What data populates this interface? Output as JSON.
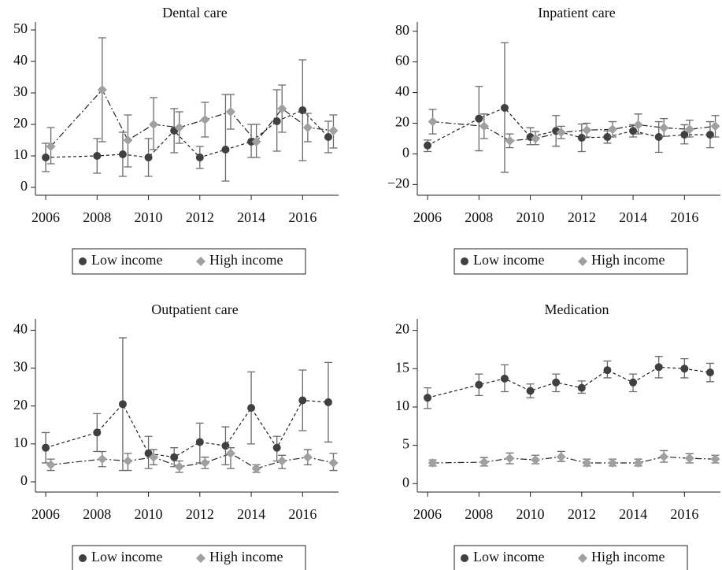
{
  "chart_data": [
    {
      "type": "line",
      "title": "Dental care",
      "xlim": [
        2005.6,
        2017.4
      ],
      "xticks": [
        2006,
        2008,
        2010,
        2012,
        2014,
        2016
      ],
      "ylim": [
        -2.5,
        52.5
      ],
      "yticks": [
        0,
        10,
        20,
        30,
        40,
        50
      ],
      "legend": "bottom",
      "series": [
        {
          "name": "Low income",
          "color": "#404040",
          "marker": "circle",
          "linestyle": "dashed",
          "x": [
            2006,
            2008,
            2009,
            2010,
            2011,
            2012,
            2013,
            2014,
            2015,
            2016,
            2017
          ],
          "values": [
            9.5,
            10,
            10.5,
            9.5,
            18,
            9.5,
            12,
            14.5,
            21,
            24.5,
            16
          ],
          "lower": [
            5,
            4.5,
            3.5,
            3.5,
            11,
            6,
            2,
            9.5,
            11.5,
            8.5,
            11
          ],
          "upper": [
            14,
            15.5,
            17.5,
            15.5,
            25,
            13,
            29.5,
            20,
            31,
            40.5,
            21
          ]
        },
        {
          "name": "High income",
          "color": "#a0a0a0",
          "marker": "diamond",
          "linestyle": "dashdot",
          "x": [
            2006.2,
            2008.2,
            2009.2,
            2010.2,
            2011.2,
            2012.2,
            2013.2,
            2014.2,
            2015.2,
            2016.2,
            2017.2
          ],
          "values": [
            13,
            31,
            15,
            20,
            19,
            21.5,
            24,
            14.5,
            25,
            19,
            18
          ],
          "lower": [
            7.5,
            14.5,
            6.5,
            12,
            14,
            16,
            18.5,
            9.5,
            17.5,
            14.5,
            12.5
          ],
          "upper": [
            19,
            47.5,
            23,
            28.5,
            24,
            27,
            29.5,
            20,
            32.5,
            23.5,
            23
          ]
        }
      ]
    },
    {
      "type": "line",
      "title": "Inpatient care",
      "xlim": [
        2005.6,
        2017.4
      ],
      "xticks": [
        2006,
        2008,
        2010,
        2012,
        2014,
        2016
      ],
      "ylim": [
        -27,
        86
      ],
      "yticks": [
        {
          "value": -20,
          "label": "−20"
        },
        0,
        20,
        40,
        60,
        80
      ],
      "legend": "bottom",
      "series": [
        {
          "name": "Low income",
          "color": "#404040",
          "marker": "circle",
          "linestyle": "dashed",
          "x": [
            2006,
            2008,
            2009,
            2010,
            2011,
            2012,
            2013,
            2014,
            2015,
            2016,
            2017
          ],
          "values": [
            5.5,
            23,
            30,
            11,
            15,
            10.5,
            11,
            15,
            11,
            12.5,
            12.5
          ],
          "lower": [
            1.5,
            2,
            -12,
            6,
            5,
            1.5,
            7,
            11,
            1,
            6.5,
            4
          ],
          "upper": [
            9,
            44,
            72.5,
            17,
            25,
            19.5,
            15,
            19,
            21,
            19,
            21
          ]
        },
        {
          "name": "High income",
          "color": "#a0a0a0",
          "marker": "diamond",
          "linestyle": "dashdot",
          "x": [
            2006.2,
            2008.2,
            2009.2,
            2010.2,
            2011.2,
            2012.2,
            2013.2,
            2014.2,
            2015.2,
            2016.2,
            2017.2
          ],
          "values": [
            21,
            18,
            8.5,
            10,
            14,
            15.5,
            16,
            19,
            17,
            16,
            18
          ],
          "lower": [
            13,
            10,
            4,
            6,
            10,
            11,
            11,
            13,
            11.5,
            11,
            11
          ],
          "upper": [
            29,
            26,
            13,
            14.5,
            18,
            20,
            21,
            26,
            23,
            22,
            25
          ]
        }
      ]
    },
    {
      "type": "line",
      "title": "Outpatient care",
      "xlim": [
        2005.6,
        2017.4
      ],
      "xticks": [
        2006,
        2008,
        2010,
        2012,
        2014,
        2016
      ],
      "ylim": [
        -2.7,
        43
      ],
      "yticks": [
        0,
        10,
        20,
        30,
        40
      ],
      "legend": "bottom",
      "series": [
        {
          "name": "Low income",
          "color": "#404040",
          "marker": "circle",
          "linestyle": "dashed",
          "x": [
            2006,
            2008,
            2009,
            2010,
            2011,
            2012,
            2013,
            2014,
            2015,
            2016,
            2017
          ],
          "values": [
            9,
            13,
            20.5,
            7.5,
            6.5,
            10.5,
            9.5,
            19.5,
            9,
            21.5,
            21
          ],
          "lower": [
            5,
            8,
            3,
            3.5,
            4,
            5,
            4.5,
            10,
            5.5,
            13.5,
            10.5
          ],
          "upper": [
            13,
            18,
            38,
            12,
            9,
            15.5,
            14.5,
            29,
            12,
            29.5,
            31.5
          ]
        },
        {
          "name": "High income",
          "color": "#a0a0a0",
          "marker": "diamond",
          "linestyle": "dashdot",
          "x": [
            2006.2,
            2008.2,
            2009.2,
            2010.2,
            2011.2,
            2012.2,
            2013.2,
            2014.2,
            2015.2,
            2016.2,
            2017.2
          ],
          "values": [
            4.5,
            6,
            5.5,
            6.5,
            4,
            5,
            7.5,
            3.5,
            5.5,
            6.5,
            5
          ],
          "lower": [
            3,
            4,
            3,
            4.5,
            2.5,
            3.5,
            3.5,
            2.5,
            3.5,
            4.5,
            3
          ],
          "upper": [
            6,
            8,
            7.5,
            8.5,
            5.5,
            6.5,
            9,
            4.5,
            7,
            8.5,
            7.5
          ]
        }
      ]
    },
    {
      "type": "line",
      "title": "Medication",
      "xlim": [
        2005.6,
        2017.4
      ],
      "xticks": [
        2006,
        2008,
        2010,
        2012,
        2014,
        2016
      ],
      "ylim": [
        -1.1,
        21.5
      ],
      "yticks": [
        0,
        5,
        10,
        15,
        20
      ],
      "legend": "bottom",
      "series": [
        {
          "name": "Low income",
          "color": "#404040",
          "marker": "circle",
          "linestyle": "dashed",
          "x": [
            2006,
            2008,
            2009,
            2010,
            2011,
            2012,
            2013,
            2014,
            2015,
            2016,
            2017
          ],
          "values": [
            11.2,
            12.9,
            13.7,
            12.1,
            13.2,
            12.5,
            14.8,
            13.2,
            15.2,
            15,
            14.5
          ],
          "lower": [
            9.8,
            11.5,
            12,
            11.2,
            12,
            11.8,
            13.8,
            12,
            13.8,
            13.8,
            13.3
          ],
          "upper": [
            12.5,
            14.3,
            15.5,
            13,
            14.3,
            13.4,
            16,
            14.3,
            16.6,
            16.3,
            15.7
          ]
        },
        {
          "name": "High income",
          "color": "#a0a0a0",
          "marker": "diamond",
          "linestyle": "dashdot",
          "x": [
            2006.2,
            2008.2,
            2009.2,
            2010.2,
            2011.2,
            2012.2,
            2013.2,
            2014.2,
            2015.2,
            2016.2,
            2017.2
          ],
          "values": [
            2.7,
            2.8,
            3.3,
            3.1,
            3.5,
            2.7,
            2.7,
            2.7,
            3.5,
            3.3,
            3.2
          ],
          "lower": [
            2.3,
            2.3,
            2.6,
            2.6,
            2.9,
            2.3,
            2.3,
            2.3,
            2.8,
            2.7,
            2.7
          ],
          "upper": [
            3.1,
            3.4,
            4,
            3.7,
            4.2,
            3.2,
            3.2,
            3.2,
            4.3,
            3.9,
            3.7
          ]
        }
      ]
    }
  ]
}
